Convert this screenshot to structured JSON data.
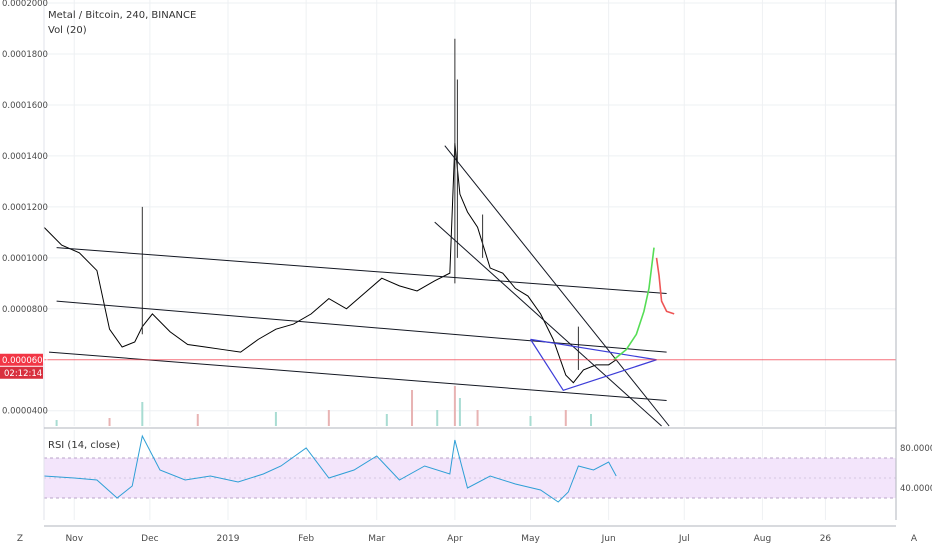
{
  "chart_data": {
    "type": "line",
    "symbol_title": "Metal / Bitcoin, 240, BINANCE",
    "volume_label": "Vol (20)",
    "rsi_label": "RSI (14, close)",
    "price_axis": {
      "ticks": [
        "0.0002000",
        "0.0001800",
        "0.0001600",
        "0.0001400",
        "0.0001200",
        "0.0001000",
        "0.0000800",
        "0.0000400"
      ],
      "tick_values": [
        0.0002,
        0.00018,
        0.00016,
        0.00014,
        0.00012,
        0.0001,
        8e-05,
        4e-05
      ],
      "range": [
        3.4e-05,
        0.0002012
      ]
    },
    "current_price": {
      "label": "0.0000600",
      "value": 6e-05,
      "countdown": "02:12:14",
      "color": "#f23645"
    },
    "rsi_axis": {
      "ticks": [
        "80.0000",
        "40.0000"
      ],
      "tick_values": [
        80,
        40
      ],
      "range": [
        8,
        98
      ],
      "band": [
        30,
        70
      ]
    },
    "time_axis": {
      "labels": [
        "Nov",
        "Dec",
        "2019",
        "Feb",
        "Mar",
        "Apr",
        "May",
        "Jun",
        "Jul",
        "Aug",
        "26"
      ],
      "dates": [
        "2018-11-01",
        "2018-12-01",
        "2019-01-01",
        "2019-02-01",
        "2019-03-01",
        "2019-04-01",
        "2019-05-01",
        "2019-06-01",
        "2019-07-01",
        "2019-08-01",
        "2019-08-26"
      ]
    },
    "price_series": {
      "name": "",
      "x": [
        "2018-10-20",
        "2018-10-27",
        "2018-11-03",
        "2018-11-10",
        "2018-11-15",
        "2018-11-20",
        "2018-11-25",
        "2018-11-28",
        "2018-12-02",
        "2018-12-09",
        "2018-12-16",
        "2018-12-23",
        "2018-12-30",
        "2019-01-06",
        "2019-01-13",
        "2019-01-20",
        "2019-01-27",
        "2019-02-03",
        "2019-02-10",
        "2019-02-17",
        "2019-02-24",
        "2019-03-03",
        "2019-03-10",
        "2019-03-17",
        "2019-03-24",
        "2019-03-30",
        "2019-04-01",
        "2019-04-03",
        "2019-04-06",
        "2019-04-10",
        "2019-04-15",
        "2019-04-20",
        "2019-04-25",
        "2019-04-30",
        "2019-05-05",
        "2019-05-10",
        "2019-05-15",
        "2019-05-18",
        "2019-05-22",
        "2019-05-27",
        "2019-06-01",
        "2019-06-04"
      ],
      "y": [
        0.000112,
        0.000105,
        0.000102,
        9.5e-05,
        7.2e-05,
        6.5e-05,
        6.7e-05,
        7.3e-05,
        7.8e-05,
        7.1e-05,
        6.6e-05,
        6.5e-05,
        6.4e-05,
        6.3e-05,
        6.8e-05,
        7.2e-05,
        7.4e-05,
        7.8e-05,
        8.4e-05,
        8e-05,
        8.6e-05,
        9.2e-05,
        8.9e-05,
        8.7e-05,
        9.1e-05,
        9.4e-05,
        0.000145,
        0.000125,
        0.000118,
        0.000112,
        9.6e-05,
        9.4e-05,
        8.8e-05,
        8.5e-05,
        7.8e-05,
        6.8e-05,
        5.4e-05,
        5.1e-05,
        5.6e-05,
        5.8e-05,
        5.8e-05,
        6e-05
      ],
      "color": "#000000"
    },
    "spikes": [
      {
        "x": "2018-11-28",
        "low": 7e-05,
        "high": 0.00012
      },
      {
        "x": "2019-04-01",
        "low": 9e-05,
        "high": 0.000186
      },
      {
        "x": "2019-04-02",
        "low": 0.0001,
        "high": 0.00017
      },
      {
        "x": "2019-04-12",
        "low": 0.0001,
        "high": 0.000117
      },
      {
        "x": "2019-05-20",
        "low": 5.6e-05,
        "high": 7.3e-05
      }
    ],
    "channel_lines": [
      {
        "x": [
          "2018-10-25",
          "2019-06-24"
        ],
        "y": [
          0.000104,
          8.6e-05
        ],
        "color": "#131722"
      },
      {
        "x": [
          "2018-10-25",
          "2019-06-24"
        ],
        "y": [
          8.3e-05,
          6.3e-05
        ],
        "color": "#131722"
      },
      {
        "x": [
          "2018-10-22",
          "2019-06-24"
        ],
        "y": [
          6.3e-05,
          4.4e-05
        ],
        "color": "#131722"
      },
      {
        "x": [
          "2019-03-24",
          "2019-06-22"
        ],
        "y": [
          0.000114,
          3.4e-05
        ],
        "color": "#131722"
      },
      {
        "x": [
          "2019-03-28",
          "2019-06-25"
        ],
        "y": [
          0.000144,
          3.4e-05
        ],
        "color": "#131722"
      }
    ],
    "triangle": {
      "x": [
        "2019-05-01",
        "2019-06-20",
        "2019-05-14",
        "2019-05-01"
      ],
      "y": [
        6.8e-05,
        6e-05,
        4.8e-05,
        6.8e-05
      ],
      "color": "#3d3dd8"
    },
    "projection_up": {
      "x": [
        "2019-06-03",
        "2019-06-08",
        "2019-06-12",
        "2019-06-15",
        "2019-06-17",
        "2019-06-19"
      ],
      "y": [
        6e-05,
        6.4e-05,
        7e-05,
        7.9e-05,
        8.8e-05,
        0.000104
      ],
      "color": "#55dd55"
    },
    "projection_down": {
      "x": [
        "2019-06-20",
        "2019-06-21",
        "2019-06-22",
        "2019-06-24",
        "2019-06-27"
      ],
      "y": [
        0.0001,
        9.3e-05,
        8.3e-05,
        7.9e-05,
        7.8e-05
      ],
      "color": "#ee5555"
    },
    "rsi_series": {
      "x": [
        "2018-10-20",
        "2018-11-01",
        "2018-11-10",
        "2018-11-18",
        "2018-11-24",
        "2018-11-28",
        "2018-12-05",
        "2018-12-15",
        "2018-12-25",
        "2019-01-05",
        "2019-01-15",
        "2019-01-22",
        "2019-02-01",
        "2019-02-10",
        "2019-02-20",
        "2019-03-01",
        "2019-03-10",
        "2019-03-20",
        "2019-03-30",
        "2019-04-01",
        "2019-04-06",
        "2019-04-15",
        "2019-04-25",
        "2019-05-05",
        "2019-05-12",
        "2019-05-16",
        "2019-05-20",
        "2019-05-26",
        "2019-06-01",
        "2019-06-04"
      ],
      "y": [
        52,
        50,
        48,
        30,
        42,
        92,
        58,
        48,
        52,
        46,
        54,
        62,
        80,
        50,
        58,
        72,
        48,
        62,
        54,
        88,
        40,
        52,
        44,
        38,
        26,
        36,
        62,
        58,
        66,
        52
      ],
      "color": "#2e9fd6"
    },
    "volume": {
      "x": [
        "2018-10-25",
        "2018-11-15",
        "2018-11-28",
        "2018-12-20",
        "2019-01-20",
        "2019-02-10",
        "2019-03-05",
        "2019-03-15",
        "2019-03-25",
        "2019-04-01",
        "2019-04-03",
        "2019-04-10",
        "2019-05-01",
        "2019-05-15",
        "2019-05-25"
      ],
      "y": [
        0.15,
        0.2,
        0.6,
        0.3,
        0.35,
        0.4,
        0.3,
        0.9,
        0.4,
        1.0,
        0.7,
        0.4,
        0.25,
        0.4,
        0.3
      ]
    },
    "grid": true
  },
  "toolbar": {
    "left_icon_label": "Z",
    "right_icon_label": "A"
  }
}
